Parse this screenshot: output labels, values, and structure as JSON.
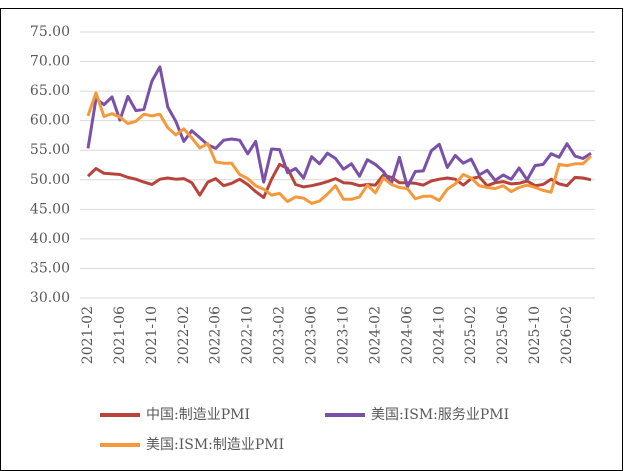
{
  "chart_data": {
    "type": "line",
    "categories": [
      "2021-02",
      null,
      null,
      null,
      "2021-06",
      null,
      null,
      null,
      "2021-10",
      null,
      null,
      null,
      "2022-02",
      null,
      null,
      null,
      "2022-06",
      null,
      null,
      null,
      "2022-10",
      null,
      null,
      null,
      "2023-02",
      null,
      null,
      null,
      "2023-06",
      null,
      null,
      null,
      "2023-10",
      null,
      null,
      null,
      "2024-02",
      null,
      null,
      null,
      "2024-06",
      null,
      null,
      null,
      "2024-10",
      null,
      null,
      null,
      "2025-02",
      null,
      null,
      null,
      "2025-06",
      null,
      null,
      null,
      "2025-10",
      null,
      null,
      null,
      "2026-02",
      null,
      null,
      null
    ],
    "series": [
      {
        "name": "中国:制造业PMI",
        "color": "#b8433b",
        "values": [
          50.6,
          51.9,
          51.1,
          51.0,
          50.9,
          50.4,
          50.1,
          49.6,
          49.2,
          50.1,
          50.3,
          50.1,
          50.2,
          49.5,
          47.4,
          49.6,
          50.2,
          49.0,
          49.4,
          50.1,
          49.2,
          48.0,
          47.0,
          50.1,
          52.6,
          51.9,
          49.2,
          48.8,
          49.0,
          49.3,
          49.7,
          50.2,
          49.5,
          49.4,
          49.0,
          49.2,
          49.1,
          50.8,
          50.4,
          49.5,
          49.5,
          49.4,
          49.1,
          49.8,
          50.1,
          50.3,
          50.1,
          49.1,
          50.2,
          50.5,
          49.0,
          49.5,
          49.7,
          49.3,
          49.4,
          49.8,
          49.0,
          49.2,
          50.1,
          49.3,
          49.0,
          50.4,
          50.3,
          50.0
        ]
      },
      {
        "name": "美国:ISM:服务业PMI",
        "color": "#7a50a8",
        "values": [
          55.3,
          63.7,
          62.7,
          64.0,
          60.1,
          64.1,
          61.7,
          61.9,
          66.7,
          69.1,
          62.3,
          59.9,
          56.5,
          58.3,
          57.1,
          55.9,
          55.3,
          56.7,
          56.9,
          56.7,
          54.4,
          56.5,
          49.6,
          55.2,
          55.1,
          51.2,
          51.9,
          50.3,
          53.9,
          52.7,
          54.5,
          53.6,
          51.8,
          52.7,
          50.6,
          53.4,
          52.6,
          51.4,
          49.4,
          53.8,
          48.8,
          51.4,
          51.5,
          54.9,
          56.0,
          52.1,
          54.1,
          52.8,
          53.5,
          50.8,
          51.6,
          49.9,
          50.8,
          50.1,
          52.0,
          50.0,
          52.4,
          52.6,
          54.4,
          53.8,
          56.1,
          54.0,
          53.6,
          54.5
        ]
      },
      {
        "name": "美国:ISM:制造业PMI",
        "color": "#f5993c",
        "values": [
          60.8,
          64.7,
          60.7,
          61.2,
          60.6,
          59.5,
          59.9,
          61.1,
          60.8,
          61.1,
          58.8,
          57.6,
          58.6,
          57.1,
          55.4,
          56.1,
          53.0,
          52.8,
          52.8,
          50.9,
          50.2,
          49.0,
          48.4,
          47.4,
          47.7,
          46.3,
          47.1,
          46.9,
          46.0,
          46.4,
          47.6,
          49.0,
          46.7,
          46.7,
          47.1,
          49.1,
          47.8,
          50.3,
          49.2,
          48.7,
          48.5,
          46.8,
          47.2,
          47.2,
          46.5,
          48.4,
          49.3,
          50.9,
          50.3,
          49.0,
          48.7,
          48.5,
          49.0,
          48.0,
          48.7,
          49.1,
          48.7,
          48.2,
          47.9,
          52.6,
          52.4,
          52.7,
          52.7,
          54.0
        ]
      }
    ],
    "ylim": [
      30,
      75
    ],
    "yticks": [
      {
        "value": 30,
        "label": "30.00"
      },
      {
        "value": 35,
        "label": "35.00"
      },
      {
        "value": 40,
        "label": "40.00"
      },
      {
        "value": 45,
        "label": "45.00"
      },
      {
        "value": 50,
        "label": "50.00"
      },
      {
        "value": 55,
        "label": "55.00"
      },
      {
        "value": 60,
        "label": "60.00"
      },
      {
        "value": 65,
        "label": "65.00"
      },
      {
        "value": 70,
        "label": "70.00"
      },
      {
        "value": 75,
        "label": "75.00"
      }
    ],
    "grid": true
  }
}
